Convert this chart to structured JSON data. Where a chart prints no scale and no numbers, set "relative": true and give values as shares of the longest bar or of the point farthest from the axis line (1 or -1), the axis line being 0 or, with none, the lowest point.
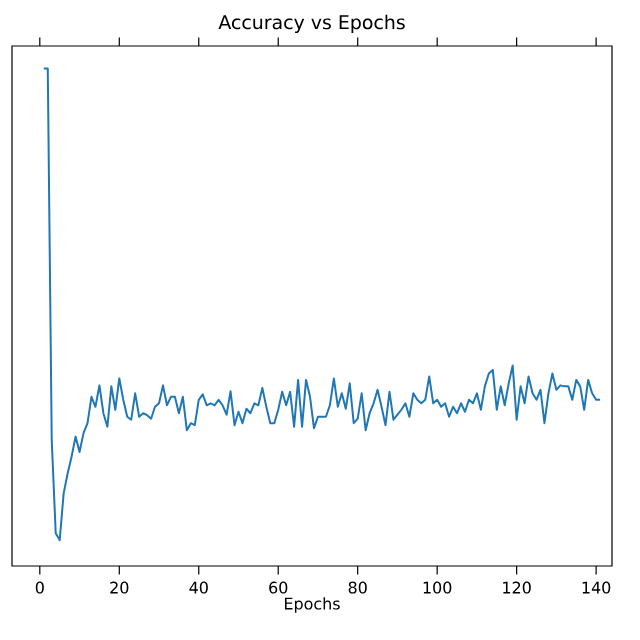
{
  "chart_data": {
    "type": "line",
    "title": "Accuracy vs Epochs",
    "xlabel": "Epochs",
    "relative": true,
    "tick_labels": "x",
    "xlim": [
      -7,
      144
    ],
    "xticks": [
      0,
      20,
      40,
      60,
      80,
      100,
      120,
      140
    ],
    "x": [
      1,
      2,
      3,
      4,
      5,
      6,
      7,
      8,
      9,
      10,
      11,
      12,
      13,
      14,
      15,
      16,
      17,
      18,
      19,
      20,
      21,
      22,
      23,
      24,
      25,
      26,
      27,
      28,
      29,
      30,
      31,
      32,
      33,
      34,
      35,
      36,
      37,
      38,
      39,
      40,
      41,
      42,
      43,
      44,
      45,
      46,
      47,
      48,
      49,
      50,
      51,
      52,
      53,
      54,
      55,
      56,
      57,
      58,
      59,
      60,
      61,
      62,
      63,
      64,
      65,
      66,
      67,
      68,
      69,
      70,
      71,
      72,
      73,
      74,
      75,
      76,
      77,
      78,
      79,
      80,
      81,
      82,
      83,
      84,
      85,
      86,
      87,
      88,
      89,
      90,
      91,
      92,
      93,
      94,
      95,
      96,
      97,
      98,
      99,
      100,
      101,
      102,
      103,
      104,
      105,
      106,
      107,
      108,
      109,
      110,
      111,
      112,
      113,
      114,
      115,
      116,
      117,
      118,
      119,
      120,
      121,
      122,
      123,
      124,
      125,
      126,
      127,
      128,
      129,
      130,
      131,
      132,
      133,
      134,
      135,
      136,
      137,
      138,
      139,
      140,
      141
    ],
    "series": [
      {
        "color": "#1f77b4",
        "values": [
          1.0,
          1.0,
          0.253,
          0.066,
          0.052,
          0.146,
          0.186,
          0.22,
          0.26,
          0.229,
          0.267,
          0.287,
          0.34,
          0.32,
          0.363,
          0.307,
          0.28,
          0.361,
          0.314,
          0.377,
          0.334,
          0.3,
          0.294,
          0.347,
          0.3,
          0.307,
          0.303,
          0.296,
          0.32,
          0.327,
          0.363,
          0.323,
          0.34,
          0.34,
          0.307,
          0.34,
          0.273,
          0.287,
          0.283,
          0.334,
          0.345,
          0.323,
          0.327,
          0.323,
          0.334,
          0.323,
          0.304,
          0.351,
          0.283,
          0.31,
          0.287,
          0.316,
          0.307,
          0.327,
          0.323,
          0.358,
          0.32,
          0.287,
          0.287,
          0.314,
          0.35,
          0.323,
          0.35,
          0.28,
          0.374,
          0.28,
          0.374,
          0.34,
          0.277,
          0.3,
          0.3,
          0.3,
          0.323,
          0.377,
          0.32,
          0.347,
          0.316,
          0.367,
          0.287,
          0.296,
          0.347,
          0.273,
          0.307,
          0.327,
          0.354,
          0.32,
          0.283,
          0.35,
          0.294,
          0.304,
          0.314,
          0.327,
          0.3,
          0.347,
          0.334,
          0.327,
          0.334,
          0.381,
          0.327,
          0.334,
          0.32,
          0.327,
          0.3,
          0.32,
          0.307,
          0.327,
          0.31,
          0.334,
          0.327,
          0.347,
          0.314,
          0.361,
          0.387,
          0.394,
          0.314,
          0.361,
          0.323,
          0.367,
          0.403,
          0.294,
          0.361,
          0.327,
          0.381,
          0.347,
          0.334,
          0.354,
          0.287,
          0.347,
          0.387,
          0.354,
          0.363,
          0.361,
          0.361,
          0.334,
          0.374,
          0.361,
          0.314,
          0.374,
          0.347,
          0.334,
          0.334
        ]
      }
    ]
  }
}
